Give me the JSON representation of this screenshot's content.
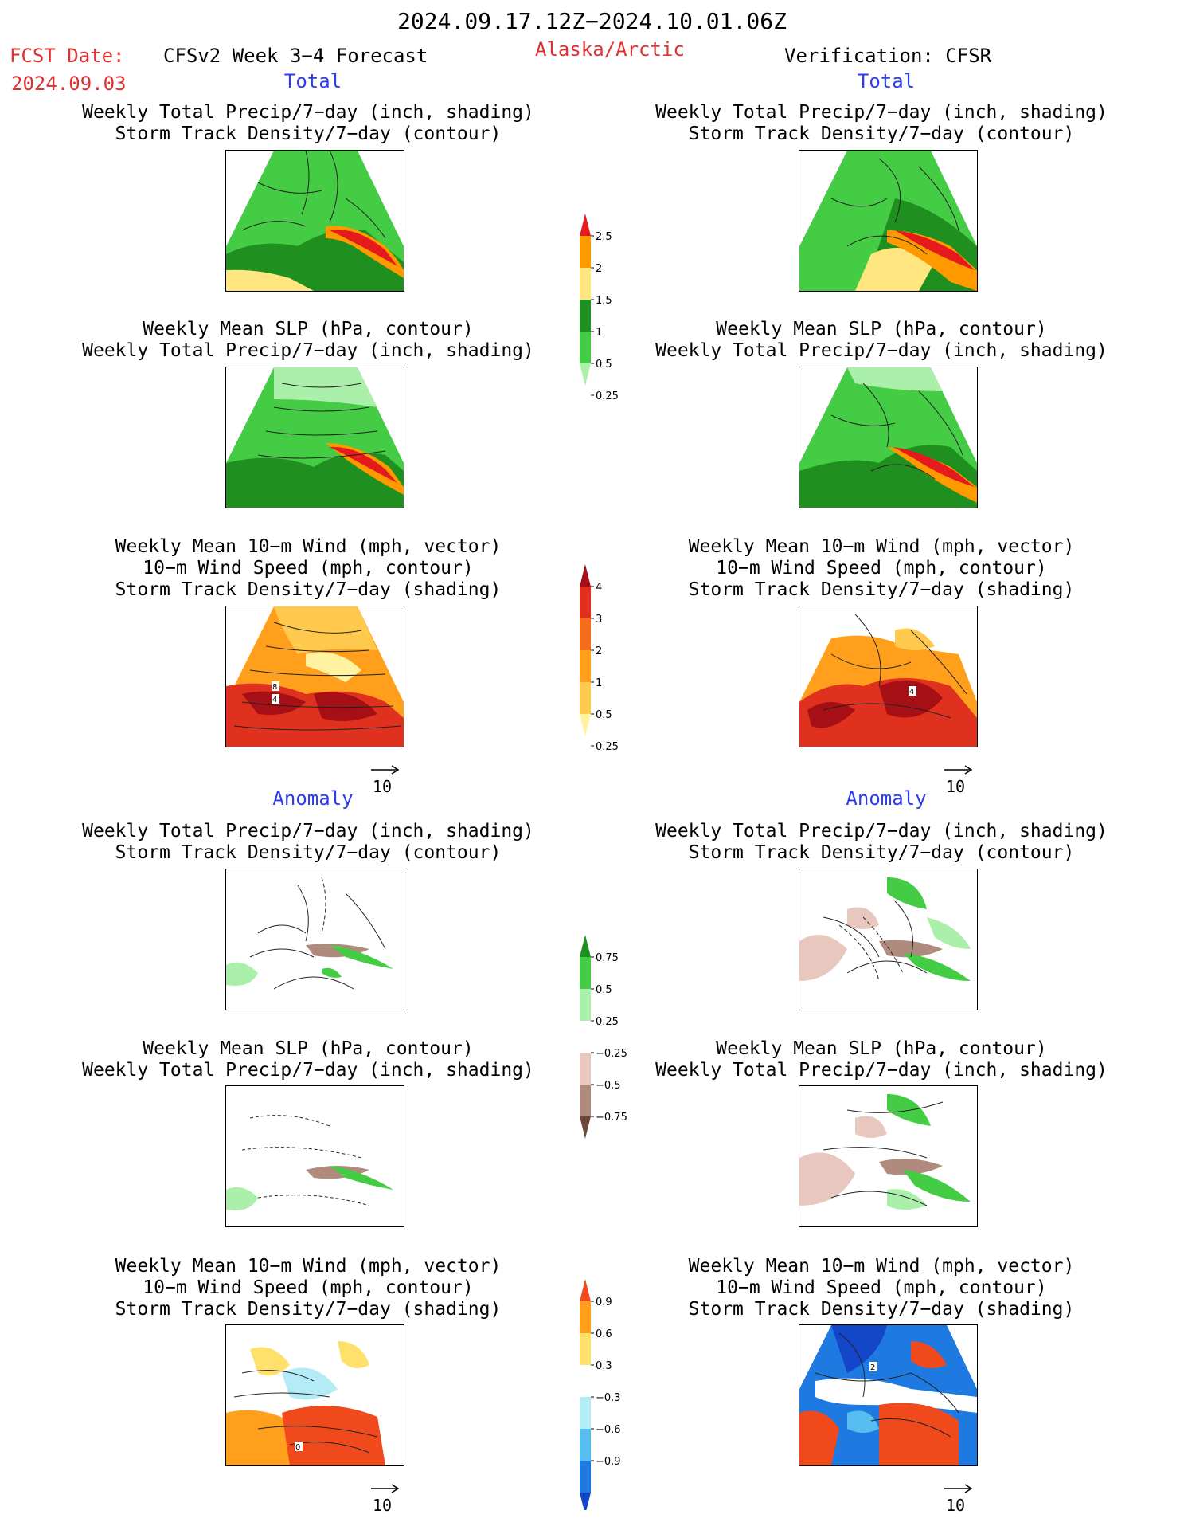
{
  "header": {
    "date_range": "2024.09.17.12Z−2024.10.01.06Z",
    "fcst_label": "FCST Date:",
    "fcst_date": "2024.09.03",
    "model_title": "CFSv2 Week 3−4 Forecast",
    "region": "Alaska/Arctic",
    "verification": "Verification: CFSR"
  },
  "sections": {
    "total_left": "Total",
    "total_right": "Total",
    "anomaly_left": "Anomaly",
    "anomaly_right": "Anomaly"
  },
  "titles": {
    "precip_storm": [
      "Weekly Total Precip/7−day (inch, shading)",
      "Storm Track Density/7−day (contour)"
    ],
    "slp_precip": [
      "Weekly Mean SLP (hPa, contour)",
      "Weekly Total Precip/7−day (inch, shading)"
    ],
    "wind_storm": [
      "Weekly Mean 10−m Wind (mph, vector)",
      "10−m Wind Speed (mph, contour)",
      "Storm Track Density/7−day (shading)"
    ]
  },
  "vector_scale": "10",
  "colorbars": {
    "precip_total": {
      "labels": [
        "2.5",
        "2",
        "1.5",
        "1",
        "0.5",
        "0.25"
      ],
      "colors": [
        "#e41a1c",
        "#ff9900",
        "#ffe680",
        "#1f8f1f",
        "#44cc44",
        "#aaf0aa"
      ]
    },
    "storm_total": {
      "labels": [
        "4",
        "3",
        "2",
        "1",
        "0.5",
        "0.25"
      ],
      "colors": [
        "#a50f15",
        "#e0301e",
        "#f46d1a",
        "#ff9f1c",
        "#ffc94d",
        "#fff2a0"
      ]
    },
    "precip_anom": {
      "labels": [
        "0.75",
        "0.5",
        "0.25",
        "−0.25",
        "−0.5",
        "−0.75"
      ],
      "colors": [
        "#1f8f1f",
        "#44cc44",
        "#aaf0aa",
        "#ffffff",
        "#e8c8be",
        "#b08a7c",
        "#6e4a3c"
      ]
    },
    "storm_anom": {
      "labels": [
        "0.9",
        "0.6",
        "0.3",
        "−0.3",
        "−0.6",
        "−0.9"
      ],
      "colors": [
        "#f04a1c",
        "#ff9f1c",
        "#ffe06a",
        "#ffffff",
        "#b3ecf7",
        "#55bdf0",
        "#1e7ae0",
        "#1346c8"
      ]
    }
  },
  "map_labels": {
    "wind_total_left": [
      "8",
      "4"
    ],
    "wind_total_right": [
      "4"
    ],
    "wind_anom_left": [
      "0"
    ],
    "wind_anom_right": [
      "2"
    ]
  }
}
